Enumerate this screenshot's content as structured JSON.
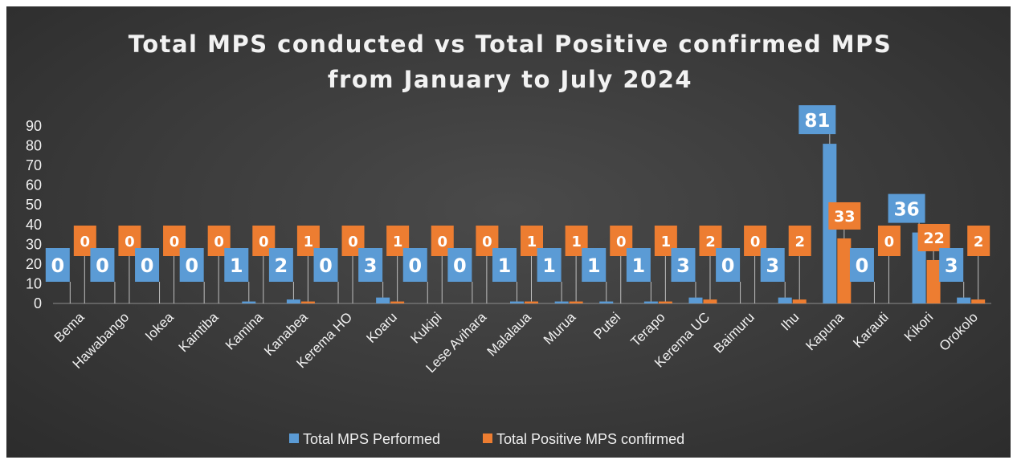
{
  "chart_data": {
    "type": "bar",
    "title": "Total MPS conducted vs Total Positive confirmed MPS",
    "subtitle": "from January to July 2024",
    "xlabel": "",
    "ylabel": "",
    "ylim": [
      0,
      90
    ],
    "yticks": [
      "0",
      "10",
      "20",
      "30",
      "40",
      "50",
      "60",
      "70",
      "80",
      "90"
    ],
    "grid": false,
    "legend_position": "bottom",
    "categories": [
      "Bema",
      "Hawabango",
      "Iokea",
      "Kaintiba",
      "Kamina",
      "Kanabea",
      "Kerema HO",
      "Koaru",
      "Kukipi",
      "Lese Avihara",
      "Malalaua",
      "Murua",
      "Putei",
      "Terapo",
      "Kerema UC",
      "Baimuru",
      "Ihu",
      "Kapuna",
      "Karauti",
      "Kikori",
      "Orokolo"
    ],
    "series": [
      {
        "name": "Total MPS Performed",
        "color": "#5b9bd5",
        "values": [
          0,
          0,
          0,
          0,
          1,
          2,
          0,
          3,
          0,
          0,
          1,
          1,
          1,
          1,
          3,
          0,
          3,
          81,
          0,
          36,
          3
        ]
      },
      {
        "name": "Total Positive MPS confirmed",
        "color": "#ed7d31",
        "values": [
          0,
          0,
          0,
          0,
          0,
          1,
          0,
          1,
          0,
          0,
          1,
          1,
          0,
          1,
          2,
          0,
          2,
          33,
          0,
          22,
          2
        ]
      }
    ]
  }
}
